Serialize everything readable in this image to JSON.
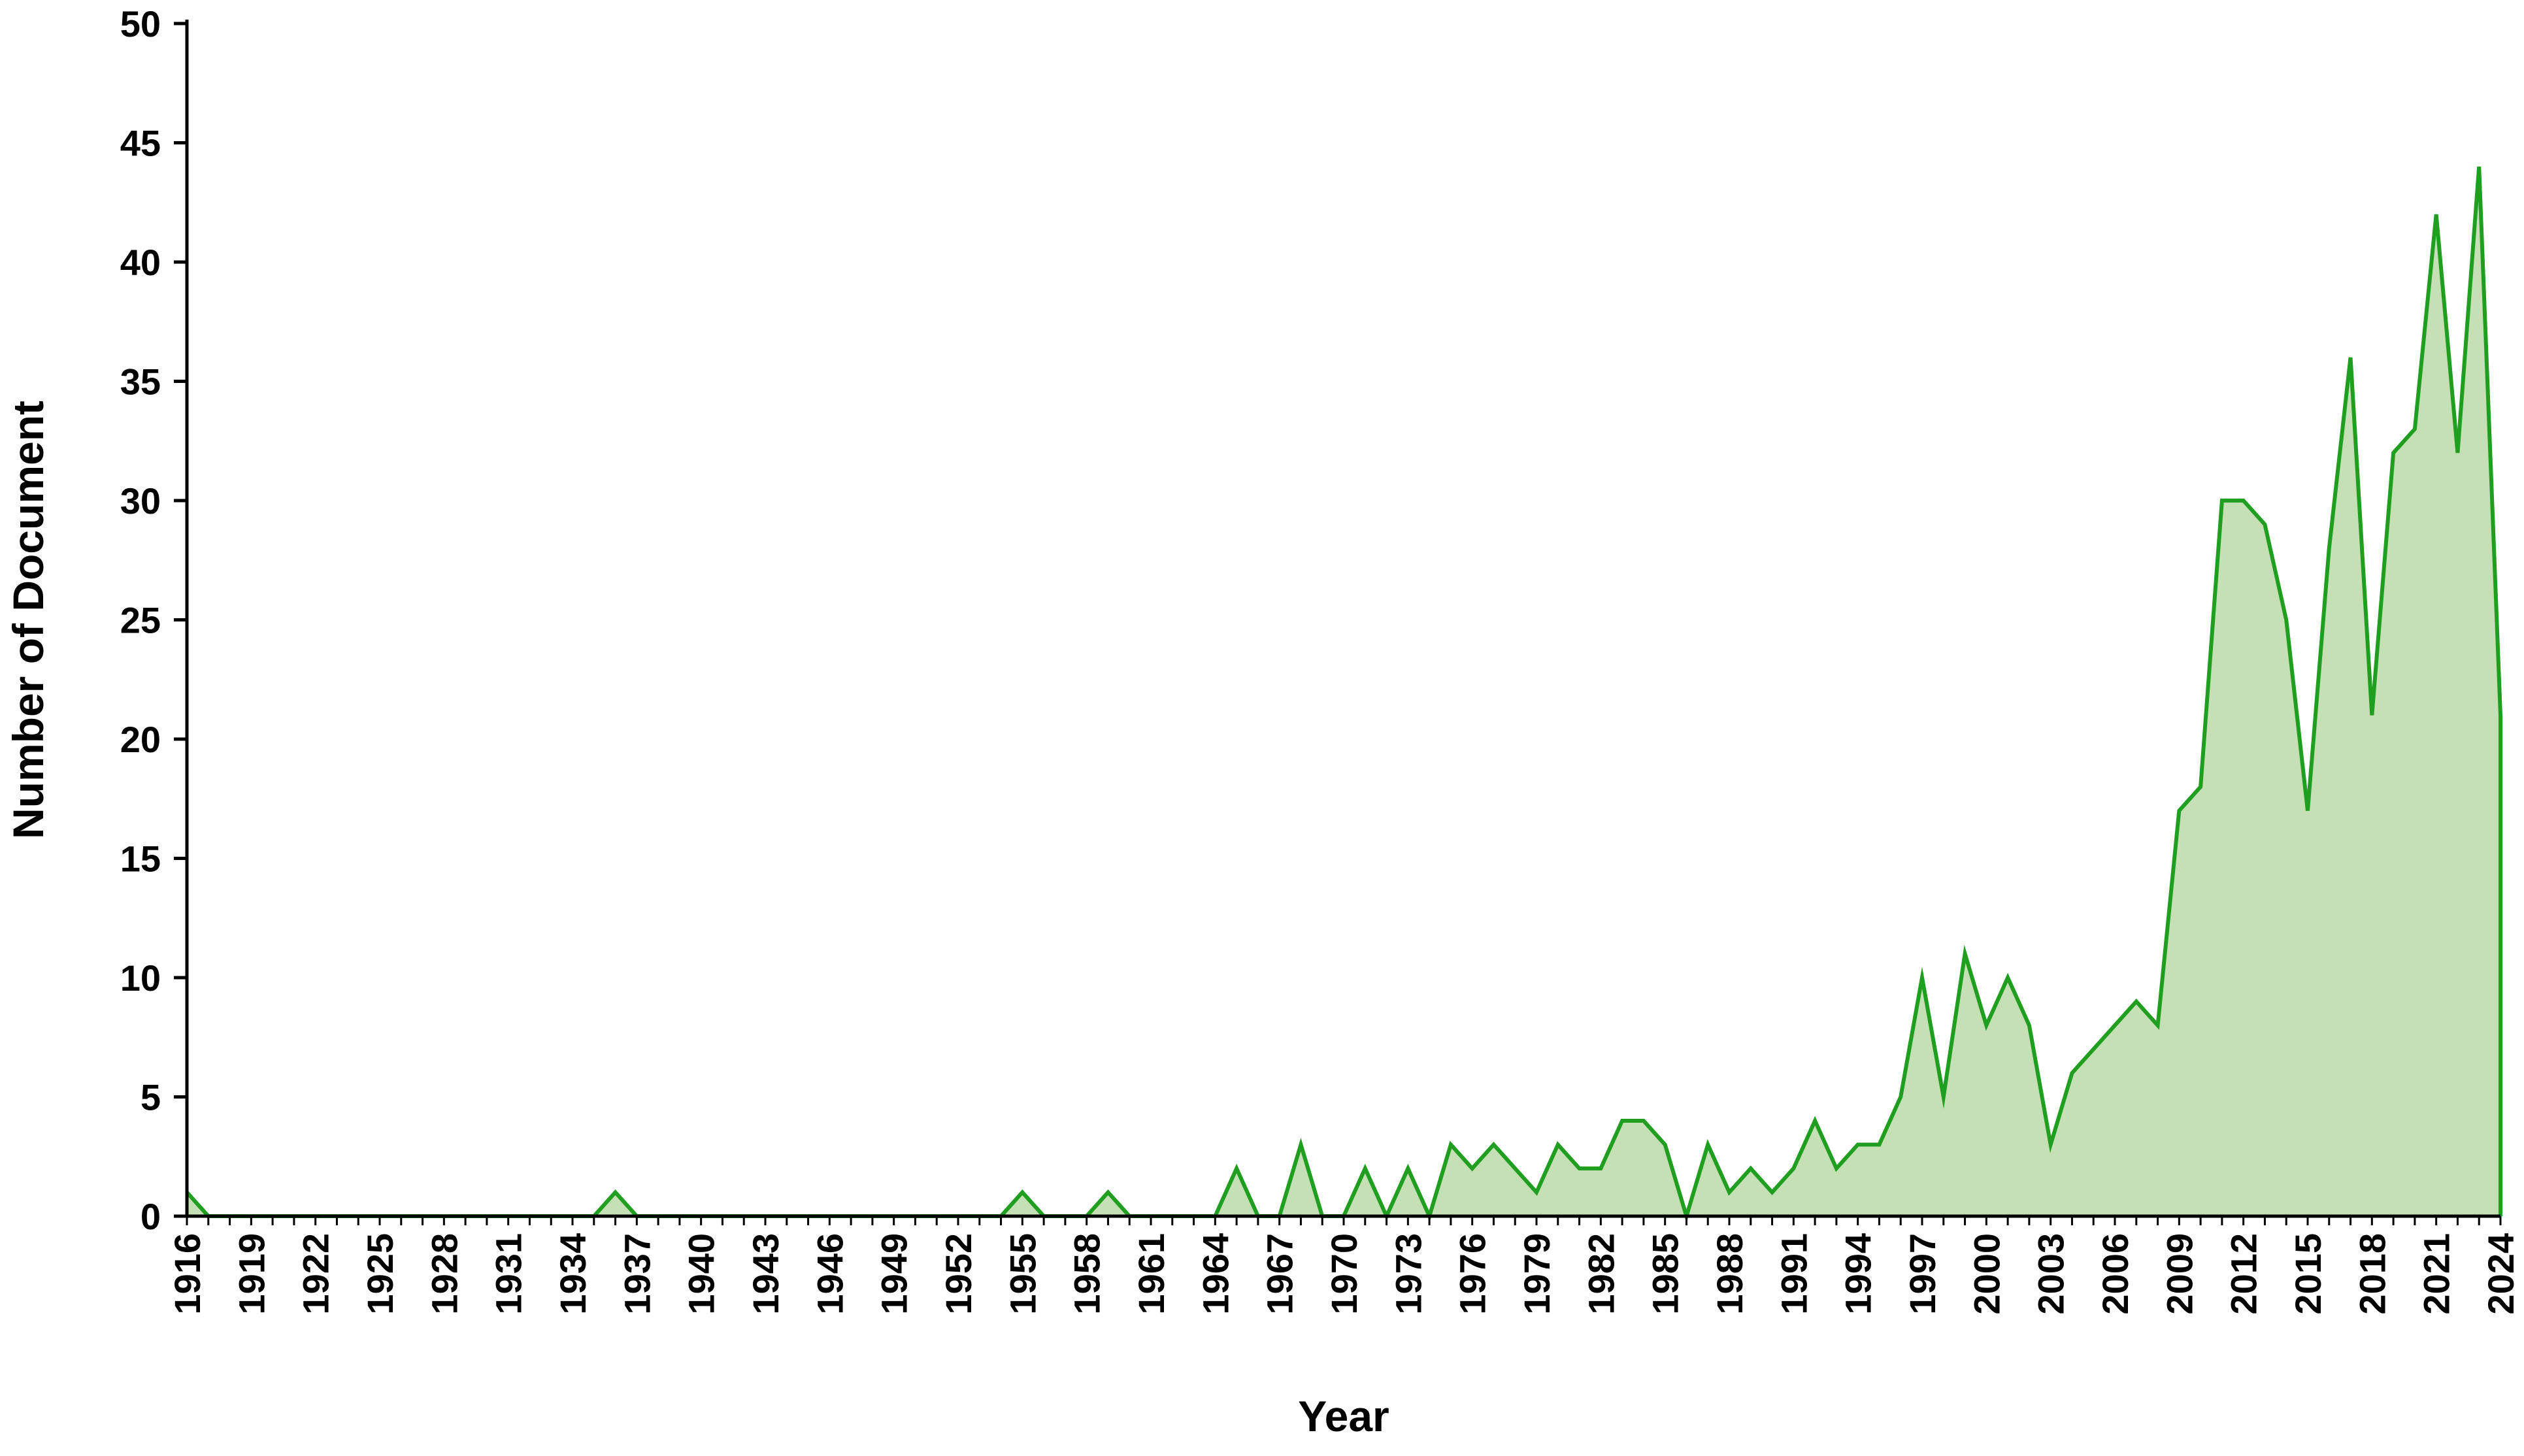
{
  "chart_data": {
    "type": "area",
    "xlabel": "Year",
    "ylabel": "Number of Document",
    "ylim": [
      0,
      50
    ],
    "yticks": [
      0,
      5,
      10,
      15,
      20,
      25,
      30,
      35,
      40,
      45,
      50
    ],
    "xlim": [
      1916,
      2024
    ],
    "xtick_step": 3,
    "grid": false,
    "legend": "none",
    "colors": {
      "line": "#1f9e1f",
      "fill": "#c5e0b4",
      "axis": "#000000"
    },
    "series": [
      {
        "points": [
          [
            1916,
            1
          ],
          [
            1917,
            0
          ],
          [
            1935,
            0
          ],
          [
            1936,
            1
          ],
          [
            1937,
            0
          ],
          [
            1954,
            0
          ],
          [
            1955,
            1
          ],
          [
            1956,
            0
          ],
          [
            1958,
            0
          ],
          [
            1959,
            1
          ],
          [
            1960,
            0
          ],
          [
            1964,
            0
          ],
          [
            1965,
            2
          ],
          [
            1966,
            0
          ],
          [
            1967,
            0
          ],
          [
            1968,
            3
          ],
          [
            1969,
            0
          ],
          [
            1970,
            0
          ],
          [
            1971,
            2
          ],
          [
            1972,
            0
          ],
          [
            1973,
            2
          ],
          [
            1974,
            0
          ],
          [
            1975,
            3
          ],
          [
            1976,
            2
          ],
          [
            1977,
            3
          ],
          [
            1978,
            2
          ],
          [
            1979,
            1
          ],
          [
            1980,
            3
          ],
          [
            1981,
            2
          ],
          [
            1982,
            2
          ],
          [
            1983,
            4
          ],
          [
            1984,
            4
          ],
          [
            1985,
            3
          ],
          [
            1986,
            0
          ],
          [
            1987,
            3
          ],
          [
            1988,
            1
          ],
          [
            1989,
            2
          ],
          [
            1990,
            1
          ],
          [
            1991,
            2
          ],
          [
            1992,
            4
          ],
          [
            1993,
            2
          ],
          [
            1994,
            3
          ],
          [
            1995,
            3
          ],
          [
            1996,
            5
          ],
          [
            1997,
            10
          ],
          [
            1998,
            5
          ],
          [
            1999,
            11
          ],
          [
            2000,
            8
          ],
          [
            2001,
            10
          ],
          [
            2002,
            8
          ],
          [
            2003,
            3
          ],
          [
            2004,
            6
          ],
          [
            2005,
            7
          ],
          [
            2006,
            8
          ],
          [
            2007,
            9
          ],
          [
            2008,
            8
          ],
          [
            2009,
            17
          ],
          [
            2010,
            18
          ],
          [
            2011,
            30
          ],
          [
            2012,
            30
          ],
          [
            2013,
            29
          ],
          [
            2014,
            25
          ],
          [
            2015,
            17
          ],
          [
            2016,
            28
          ],
          [
            2017,
            36
          ],
          [
            2018,
            21
          ],
          [
            2019,
            32
          ],
          [
            2020,
            33
          ],
          [
            2021,
            42
          ],
          [
            2022,
            32
          ],
          [
            2023,
            44
          ],
          [
            2024,
            21
          ],
          [
            2024,
            0
          ]
        ]
      }
    ]
  }
}
